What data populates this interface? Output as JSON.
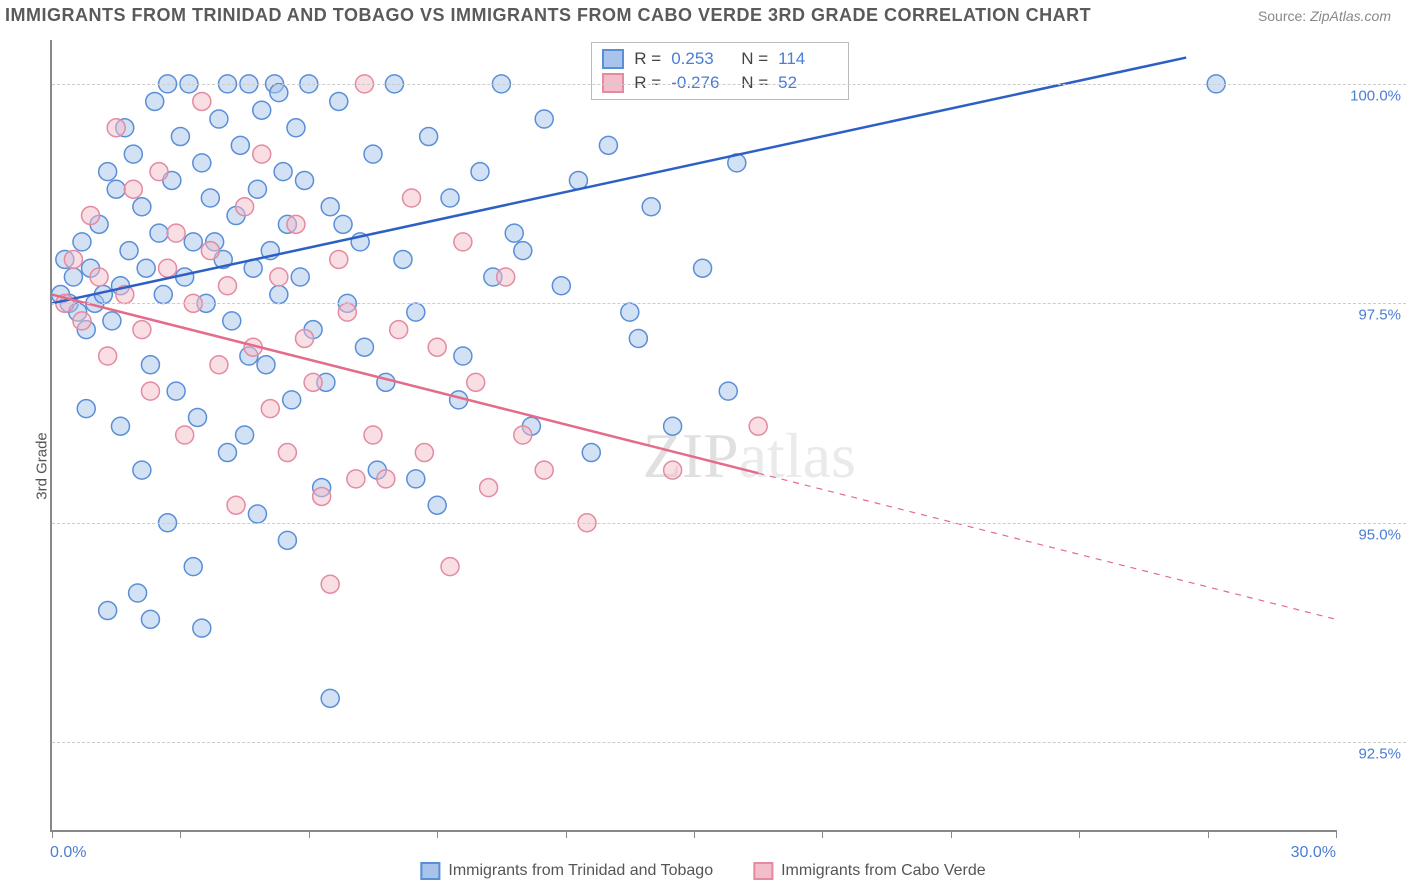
{
  "title": "IMMIGRANTS FROM TRINIDAD AND TOBAGO VS IMMIGRANTS FROM CABO VERDE 3RD GRADE CORRELATION CHART",
  "source_label": "Source:",
  "source_value": "ZipAtlas.com",
  "ylabel": "3rd Grade",
  "watermark_a": "ZIP",
  "watermark_b": "atlas",
  "chart": {
    "type": "scatter",
    "xlim": [
      0,
      30
    ],
    "ylim": [
      91.5,
      100.5
    ],
    "xmin_label": "0.0%",
    "xmax_label": "30.0%",
    "yticks": [
      92.5,
      95.0,
      97.5,
      100.0
    ],
    "ytick_labels": [
      "92.5%",
      "95.0%",
      "97.5%",
      "100.0%"
    ],
    "xtick_positions": [
      0,
      3,
      6,
      9,
      12,
      15,
      18,
      21,
      24,
      27,
      30
    ],
    "background_color": "#ffffff",
    "grid_color": "#cccccc",
    "axis_color": "#888888",
    "label_color": "#4a7dd4",
    "point_radius": 9,
    "point_opacity": 0.5,
    "line_width": 2.5
  },
  "series": [
    {
      "id": "trinidad",
      "label": "Immigrants from Trinidad and Tobago",
      "fill": "#a8c4ea",
      "stroke": "#5a8fd8",
      "line_color": "#2d5fc4",
      "R": "0.253",
      "N": "114",
      "regression": {
        "x1": 0,
        "y1": 97.5,
        "x2": 26.5,
        "y2": 100.3
      },
      "points": [
        [
          0.2,
          97.6
        ],
        [
          0.3,
          98.0
        ],
        [
          0.4,
          97.5
        ],
        [
          0.5,
          97.8
        ],
        [
          0.6,
          97.4
        ],
        [
          0.7,
          98.2
        ],
        [
          0.8,
          97.2
        ],
        [
          0.9,
          97.9
        ],
        [
          1.0,
          97.5
        ],
        [
          1.1,
          98.4
        ],
        [
          1.2,
          97.6
        ],
        [
          1.3,
          99.0
        ],
        [
          1.4,
          97.3
        ],
        [
          1.5,
          98.8
        ],
        [
          1.6,
          97.7
        ],
        [
          1.7,
          99.5
        ],
        [
          1.8,
          98.1
        ],
        [
          1.9,
          99.2
        ],
        [
          2.0,
          94.2
        ],
        [
          2.1,
          98.6
        ],
        [
          2.2,
          97.9
        ],
        [
          2.3,
          96.8
        ],
        [
          2.4,
          99.8
        ],
        [
          2.5,
          98.3
        ],
        [
          2.6,
          97.6
        ],
        [
          2.7,
          100.0
        ],
        [
          2.8,
          98.9
        ],
        [
          2.9,
          96.5
        ],
        [
          3.0,
          99.4
        ],
        [
          3.1,
          97.8
        ],
        [
          3.2,
          100.0
        ],
        [
          3.3,
          98.2
        ],
        [
          3.4,
          96.2
        ],
        [
          3.5,
          99.1
        ],
        [
          3.6,
          97.5
        ],
        [
          3.7,
          98.7
        ],
        [
          3.5,
          93.8
        ],
        [
          3.9,
          99.6
        ],
        [
          4.0,
          98.0
        ],
        [
          4.1,
          100.0
        ],
        [
          4.2,
          97.3
        ],
        [
          4.3,
          98.5
        ],
        [
          4.4,
          99.3
        ],
        [
          4.5,
          96.0
        ],
        [
          4.6,
          100.0
        ],
        [
          4.7,
          97.9
        ],
        [
          4.8,
          98.8
        ],
        [
          4.9,
          99.7
        ],
        [
          5.0,
          96.8
        ],
        [
          5.1,
          98.1
        ],
        [
          5.2,
          100.0
        ],
        [
          5.3,
          97.6
        ],
        [
          5.4,
          99.0
        ],
        [
          5.5,
          98.4
        ],
        [
          5.6,
          96.4
        ],
        [
          5.7,
          99.5
        ],
        [
          5.8,
          97.8
        ],
        [
          5.9,
          98.9
        ],
        [
          6.0,
          100.0
        ],
        [
          6.1,
          97.2
        ],
        [
          6.3,
          95.4
        ],
        [
          6.5,
          98.6
        ],
        [
          6.7,
          99.8
        ],
        [
          6.9,
          97.5
        ],
        [
          6.5,
          93.0
        ],
        [
          7.2,
          98.2
        ],
        [
          7.3,
          97.0
        ],
        [
          7.5,
          99.2
        ],
        [
          7.8,
          96.6
        ],
        [
          8.0,
          100.0
        ],
        [
          8.2,
          98.0
        ],
        [
          8.5,
          97.4
        ],
        [
          8.8,
          99.4
        ],
        [
          9.0,
          95.2
        ],
        [
          9.3,
          98.7
        ],
        [
          9.6,
          96.9
        ],
        [
          10.0,
          99.0
        ],
        [
          10.3,
          97.8
        ],
        [
          10.5,
          100.0
        ],
        [
          10.8,
          98.3
        ],
        [
          11.2,
          96.1
        ],
        [
          11.5,
          99.6
        ],
        [
          11.9,
          97.7
        ],
        [
          12.3,
          98.9
        ],
        [
          12.6,
          95.8
        ],
        [
          13.0,
          99.3
        ],
        [
          13.5,
          97.4
        ],
        [
          14.0,
          98.6
        ],
        [
          14.5,
          96.1
        ],
        [
          14.8,
          100.0
        ],
        [
          15.2,
          97.9
        ],
        [
          15.8,
          96.5
        ],
        [
          16.0,
          99.1
        ],
        [
          0.8,
          96.3
        ],
        [
          1.3,
          94.0
        ],
        [
          1.6,
          96.1
        ],
        [
          2.1,
          95.6
        ],
        [
          2.7,
          95.0
        ],
        [
          3.3,
          94.5
        ],
        [
          4.1,
          95.8
        ],
        [
          4.8,
          95.1
        ],
        [
          5.5,
          94.8
        ],
        [
          6.4,
          96.6
        ],
        [
          7.6,
          95.6
        ],
        [
          9.5,
          96.4
        ],
        [
          2.3,
          93.9
        ],
        [
          3.8,
          98.2
        ],
        [
          4.6,
          96.9
        ],
        [
          5.3,
          99.9
        ],
        [
          6.8,
          98.4
        ],
        [
          8.5,
          95.5
        ],
        [
          11.0,
          98.1
        ],
        [
          13.7,
          97.1
        ],
        [
          27.2,
          100.0
        ]
      ]
    },
    {
      "id": "cabo_verde",
      "label": "Immigrants from Cabo Verde",
      "fill": "#f3bdc9",
      "stroke": "#e38ba0",
      "line_color": "#e56b8a",
      "R": "-0.276",
      "N": "52",
      "regression": {
        "x1": 0,
        "y1": 97.6,
        "x2": 30,
        "y2": 93.9
      },
      "regression_solid_until": 16.5,
      "points": [
        [
          0.3,
          97.5
        ],
        [
          0.5,
          98.0
        ],
        [
          0.7,
          97.3
        ],
        [
          0.9,
          98.5
        ],
        [
          1.1,
          97.8
        ],
        [
          1.3,
          96.9
        ],
        [
          1.5,
          99.5
        ],
        [
          1.7,
          97.6
        ],
        [
          1.9,
          98.8
        ],
        [
          2.1,
          97.2
        ],
        [
          2.3,
          96.5
        ],
        [
          2.5,
          99.0
        ],
        [
          2.7,
          97.9
        ],
        [
          2.9,
          98.3
        ],
        [
          3.1,
          96.0
        ],
        [
          3.3,
          97.5
        ],
        [
          3.5,
          99.8
        ],
        [
          3.7,
          98.1
        ],
        [
          3.9,
          96.8
        ],
        [
          4.1,
          97.7
        ],
        [
          4.3,
          95.2
        ],
        [
          4.5,
          98.6
        ],
        [
          4.7,
          97.0
        ],
        [
          4.9,
          99.2
        ],
        [
          5.1,
          96.3
        ],
        [
          5.3,
          97.8
        ],
        [
          5.5,
          95.8
        ],
        [
          5.7,
          98.4
        ],
        [
          5.9,
          97.1
        ],
        [
          6.1,
          96.6
        ],
        [
          6.3,
          95.3
        ],
        [
          6.5,
          94.3
        ],
        [
          6.7,
          98.0
        ],
        [
          6.9,
          97.4
        ],
        [
          7.1,
          95.5
        ],
        [
          7.3,
          100.0
        ],
        [
          7.5,
          96.0
        ],
        [
          7.8,
          95.5
        ],
        [
          8.1,
          97.2
        ],
        [
          8.4,
          98.7
        ],
        [
          8.7,
          95.8
        ],
        [
          9.0,
          97.0
        ],
        [
          9.3,
          94.5
        ],
        [
          9.6,
          98.2
        ],
        [
          9.9,
          96.6
        ],
        [
          10.2,
          95.4
        ],
        [
          10.6,
          97.8
        ],
        [
          11.0,
          96.0
        ],
        [
          11.5,
          95.6
        ],
        [
          12.5,
          95.0
        ],
        [
          14.5,
          95.6
        ],
        [
          16.5,
          96.1
        ]
      ]
    }
  ],
  "stats_labels": {
    "R": "R =",
    "N": "N ="
  }
}
